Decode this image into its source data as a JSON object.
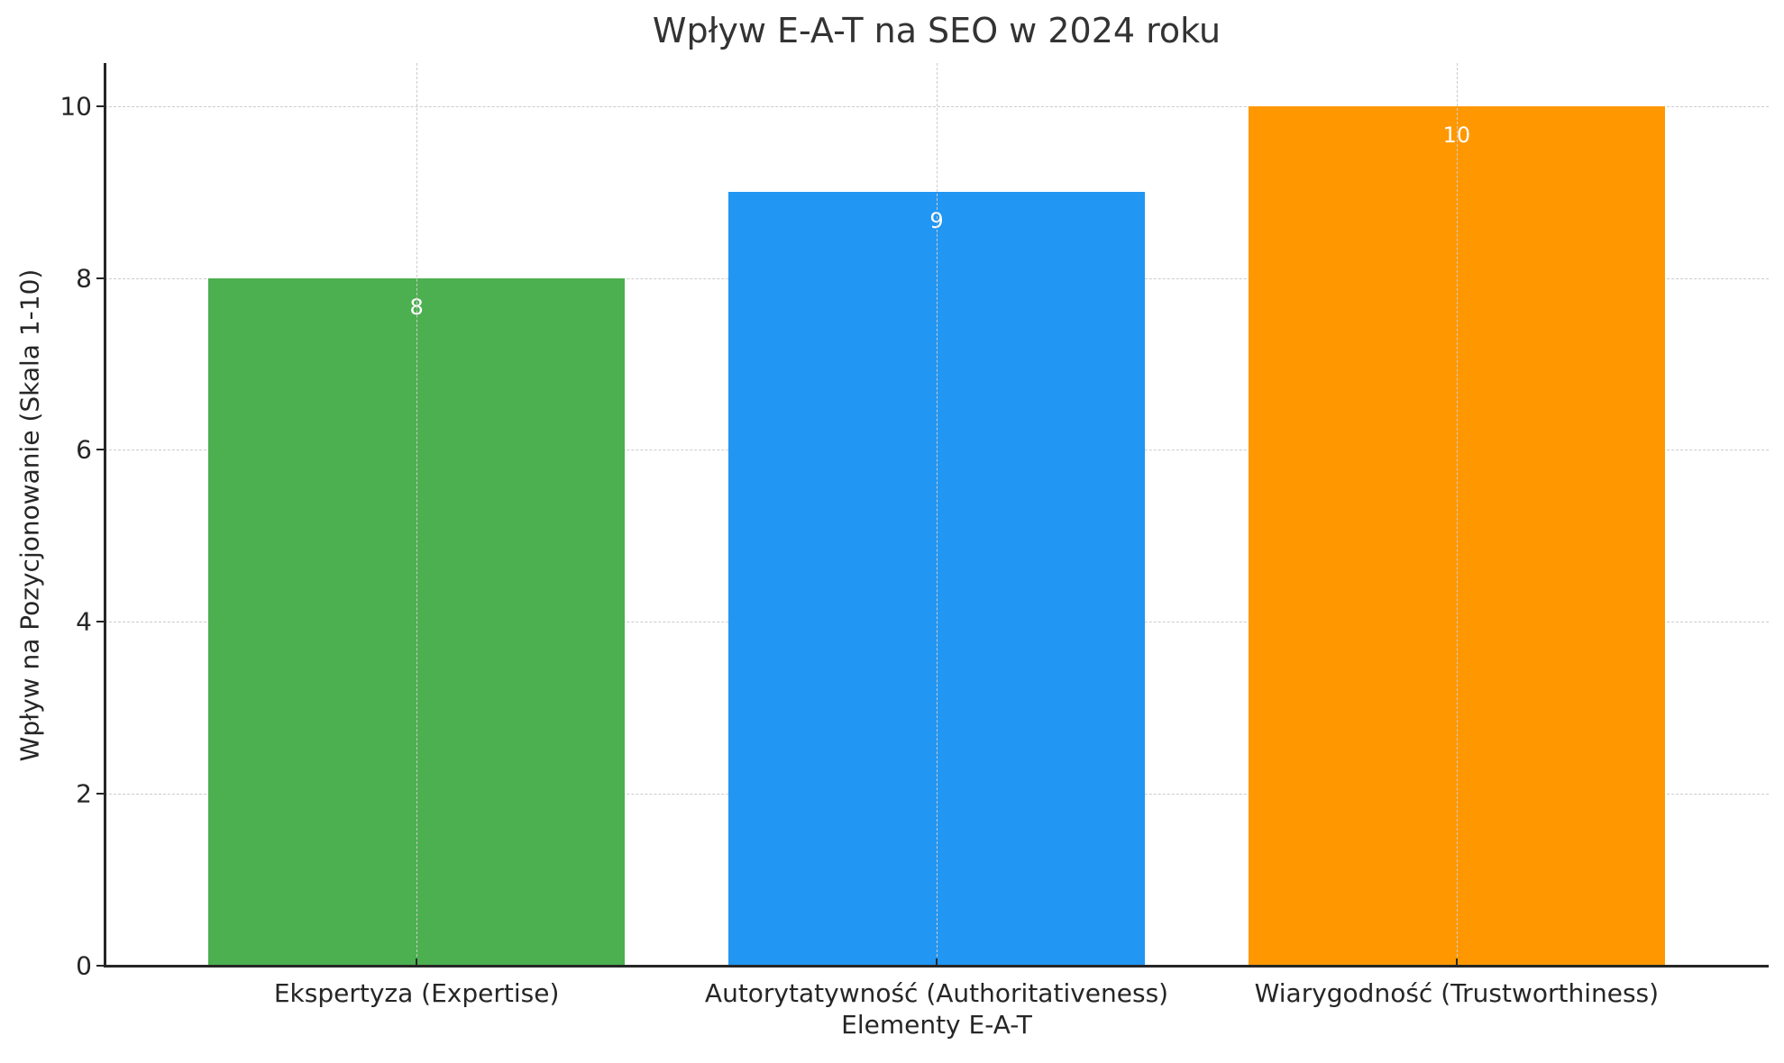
{
  "chart_data": {
    "type": "bar",
    "title": "Wpływ E-A-T na SEO w 2024 roku",
    "xlabel": "Elementy E-A-T",
    "ylabel": "Wpływ na Pozycjonowanie (Skala 1-10)",
    "categories": [
      "Ekspertyza (Expertise)",
      "Autorytatywność (Authoritativeness)",
      "Wiarygodność (Trustworthiness)"
    ],
    "values": [
      8,
      9,
      10
    ],
    "value_labels": [
      "8",
      "9",
      "10"
    ],
    "colors": [
      "#4CAF50",
      "#2196F3",
      "#FF9800"
    ],
    "ylim": [
      0,
      10.5
    ],
    "yticks": [
      0,
      2,
      4,
      6,
      8,
      10
    ],
    "ytick_labels": [
      "0",
      "2",
      "4",
      "6",
      "8",
      "10"
    ],
    "grid": true,
    "grid_style": "dashed",
    "legend": null
  }
}
